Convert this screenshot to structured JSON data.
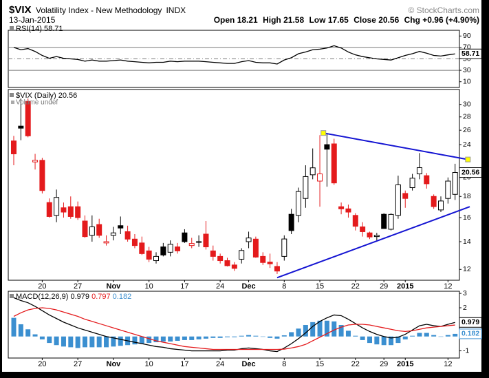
{
  "header": {
    "symbol": "$VIX",
    "name": "Volatility Index - New Methodology",
    "exchange": "INDX",
    "copyright": "© StockCharts.com",
    "date": "13-Jan-2015",
    "quote_labels": [
      "Open",
      "High",
      "Low",
      "Close",
      "Chg"
    ],
    "change": "+0.96 (+4.90%)"
  },
  "chart_data": [
    {
      "type": "line",
      "series": [
        {
          "name": "RSI(14)",
          "color": "#000000",
          "values": [
            70,
            66,
            68,
            63,
            56,
            51,
            54,
            51,
            50,
            49,
            46,
            48,
            46,
            46,
            47,
            48,
            46,
            45,
            44,
            43,
            44,
            44,
            46,
            45,
            46,
            46,
            46,
            45,
            44,
            43,
            42,
            42,
            45,
            47,
            44,
            43,
            43,
            41,
            48,
            52,
            59,
            62,
            66,
            67,
            69,
            73,
            69,
            62,
            57,
            54,
            52,
            50,
            49,
            48,
            52,
            56,
            59,
            63,
            60,
            56,
            55,
            57,
            58.71
          ]
        }
      ],
      "ylim": [
        0,
        100
      ],
      "yticks": [
        10,
        30,
        50,
        70,
        90
      ],
      "hlines": [
        30,
        70
      ],
      "dashed_hlines": [
        50
      ]
    },
    {
      "type": "candlestick",
      "title": "$VIX (Daily)",
      "subtitle": "Volume undef",
      "categories": [
        null,
        null,
        null,
        null,
        "20",
        null,
        null,
        null,
        null,
        "27",
        null,
        null,
        null,
        null,
        "Nov",
        null,
        null,
        null,
        null,
        "10",
        null,
        null,
        null,
        null,
        "17",
        null,
        null,
        null,
        null,
        "24",
        null,
        null,
        null,
        "Dec",
        null,
        null,
        null,
        null,
        "8",
        null,
        null,
        null,
        null,
        "15",
        null,
        null,
        null,
        null,
        "22",
        null,
        null,
        null,
        "29",
        null,
        null,
        "2015",
        null,
        null,
        null,
        null,
        null,
        "12",
        null
      ],
      "open": [
        24.5,
        26.6,
        30.5,
        21.8,
        22.0,
        17.4,
        16.2,
        16.9,
        17.0,
        17.0,
        15.7,
        14.5,
        15.4,
        13.9,
        14.5,
        15.3,
        14.8,
        14.2,
        13.9,
        13.3,
        12.6,
        13.6,
        13.2,
        13.6,
        14.7,
        13.7,
        14.0,
        14.6,
        13.3,
        12.9,
        12.6,
        12.3,
        12.7,
        14.0,
        14.2,
        12.9,
        12.5,
        12.2,
        12.9,
        16.3,
        16.2,
        17.8,
        20.3,
        19.6,
        24.0,
        24.1,
        17.0,
        16.8,
        16.2,
        15.2,
        14.7,
        14.4,
        16.3,
        15.0,
        16.2,
        18.3,
        18.9,
        20.4,
        20.2,
        18.0,
        16.7,
        17.8,
        18.21
      ],
      "high": [
        25.2,
        31.0,
        31.0,
        22.8,
        22.3,
        17.8,
        18.7,
        17.4,
        18.0,
        17.5,
        16.2,
        16.2,
        15.9,
        14.5,
        15.2,
        16.1,
        15.3,
        14.6,
        14.4,
        13.6,
        13.2,
        13.9,
        14.1,
        13.9,
        15.0,
        14.3,
        14.5,
        15.7,
        13.7,
        13.1,
        12.8,
        12.5,
        13.5,
        14.8,
        14.4,
        13.2,
        13.1,
        12.5,
        14.5,
        16.8,
        18.9,
        21.4,
        23.5,
        25.3,
        25.6,
        24.8,
        17.4,
        17.2,
        16.4,
        15.6,
        14.8,
        14.7,
        16.4,
        16.4,
        20.2,
        18.6,
        20.4,
        22.9,
        20.5,
        18.2,
        18.0,
        20.0,
        21.58
      ],
      "low": [
        21.4,
        24.6,
        25.0,
        20.9,
        18.3,
        16.0,
        15.6,
        16.0,
        15.9,
        15.8,
        14.3,
        14.0,
        14.3,
        13.7,
        14.1,
        14.6,
        14.0,
        13.5,
        13.0,
        12.5,
        12.4,
        12.9,
        12.9,
        13.1,
        13.9,
        13.5,
        13.6,
        13.4,
        12.6,
        12.4,
        12.2,
        11.9,
        12.4,
        13.5,
        12.8,
        12.3,
        12.1,
        11.7,
        12.6,
        14.6,
        15.6,
        16.9,
        19.8,
        17.0,
        19.0,
        19.2,
        16.3,
        16.0,
        14.9,
        14.4,
        14.2,
        14.1,
        15.1,
        14.9,
        15.9,
        16.9,
        18.6,
        19.8,
        18.8,
        16.8,
        16.5,
        17.3,
        17.65
      ],
      "close": [
        22.8,
        26.3,
        25.2,
        22.0,
        18.6,
        16.1,
        17.9,
        16.5,
        16.1,
        16.0,
        14.4,
        15.2,
        14.5,
        14.0,
        14.7,
        15.1,
        14.2,
        13.7,
        13.1,
        12.7,
        12.9,
        13.0,
        13.8,
        13.3,
        14.0,
        13.86,
        13.96,
        13.6,
        12.9,
        12.6,
        12.25,
        12.07,
        13.33,
        14.29,
        12.85,
        12.47,
        12.38,
        11.89,
        14.21,
        14.89,
        18.5,
        20.1,
        21.1,
        20.4,
        23.4,
        19.4,
        16.8,
        16.5,
        15.25,
        14.8,
        14.37,
        14.5,
        15.06,
        16.29,
        19.2,
        17.8,
        19.92,
        21.12,
        19.31,
        17.01,
        17.55,
        19.6,
        20.56
      ],
      "up_color": "#000000",
      "down_color": "#e41a1c",
      "log_scale": true,
      "ylim": [
        11.3,
        32.6
      ],
      "yticks": [
        12,
        14,
        16,
        18,
        20,
        24,
        26,
        28,
        30
      ],
      "trendlines": [
        {
          "color": "#1414d2",
          "from": [
            43.5,
            25.6
          ],
          "to": [
            63.8,
            22.1
          ],
          "marker_color": "#ffff00"
        },
        {
          "color": "#1414d2",
          "from": [
            37.0,
            11.46
          ],
          "to": [
            64.06,
            17.0
          ]
        }
      ]
    },
    {
      "type": "macd",
      "categories": [
        null,
        null,
        null,
        null,
        "20",
        null,
        null,
        null,
        null,
        "27",
        null,
        null,
        null,
        null,
        "Nov",
        null,
        null,
        null,
        null,
        "10",
        null,
        null,
        null,
        null,
        "17",
        null,
        null,
        null,
        null,
        "24",
        null,
        null,
        null,
        "Dec",
        null,
        null,
        null,
        null,
        "8",
        null,
        null,
        null,
        null,
        "15",
        null,
        null,
        null,
        null,
        "22",
        null,
        null,
        null,
        "29",
        null,
        null,
        "2015",
        null,
        null,
        null,
        null,
        null,
        "12",
        null
      ],
      "series": [
        {
          "name": "MACD(12,26,9)",
          "color": "#000000",
          "values": [
            2.7,
            2.5,
            2.35,
            2.1,
            1.8,
            1.5,
            1.25,
            1.0,
            0.8,
            0.6,
            0.45,
            0.3,
            0.15,
            0.0,
            -0.1,
            -0.2,
            -0.3,
            -0.4,
            -0.5,
            -0.6,
            -0.7,
            -0.75,
            -0.85,
            -0.9,
            -0.95,
            -1.0,
            -1.0,
            -1.0,
            -1.0,
            -1.0,
            -0.95,
            -0.95,
            -0.85,
            -0.8,
            -0.85,
            -0.9,
            -1.0,
            -1.05,
            -0.8,
            -0.5,
            -0.15,
            0.25,
            0.7,
            1.05,
            1.3,
            1.5,
            1.45,
            1.2,
            0.9,
            0.6,
            0.35,
            0.15,
            0.0,
            -0.1,
            -0.05,
            0.15,
            0.45,
            0.75,
            0.85,
            0.75,
            0.7,
            0.85,
            0.979
          ]
        },
        {
          "color": "#e41a1c",
          "values": [
            1.4,
            1.65,
            1.85,
            1.95,
            2.0,
            1.95,
            1.85,
            1.7,
            1.55,
            1.4,
            1.2,
            1.05,
            0.9,
            0.75,
            0.6,
            0.45,
            0.3,
            0.15,
            0.0,
            -0.15,
            -0.3,
            -0.4,
            -0.5,
            -0.6,
            -0.7,
            -0.75,
            -0.8,
            -0.85,
            -0.9,
            -0.9,
            -0.9,
            -0.9,
            -0.9,
            -0.9,
            -0.9,
            -0.9,
            -0.9,
            -0.9,
            -0.88,
            -0.8,
            -0.7,
            -0.55,
            -0.3,
            -0.05,
            0.2,
            0.45,
            0.65,
            0.8,
            0.85,
            0.85,
            0.8,
            0.7,
            0.6,
            0.5,
            0.4,
            0.35,
            0.4,
            0.5,
            0.6,
            0.65,
            0.7,
            0.75,
            0.797
          ]
        },
        {
          "color": "#3b8fd0",
          "bars": true,
          "values": [
            1.3,
            0.85,
            0.5,
            0.15,
            -0.2,
            -0.45,
            -0.6,
            -0.7,
            -0.75,
            -0.8,
            -0.75,
            -0.75,
            -0.75,
            -0.75,
            -0.7,
            -0.65,
            -0.6,
            -0.55,
            -0.5,
            -0.45,
            -0.4,
            -0.35,
            -0.35,
            -0.3,
            -0.25,
            -0.25,
            -0.2,
            -0.15,
            -0.1,
            -0.1,
            -0.05,
            -0.05,
            0.05,
            0.1,
            0.05,
            0.0,
            -0.1,
            -0.15,
            0.08,
            0.3,
            0.55,
            0.8,
            1.0,
            1.1,
            1.1,
            1.05,
            0.8,
            0.4,
            0.05,
            -0.25,
            -0.45,
            -0.55,
            -0.6,
            -0.6,
            -0.45,
            -0.2,
            0.05,
            0.25,
            0.25,
            0.1,
            0.0,
            0.1,
            0.182
          ]
        }
      ],
      "ylim": [
        -1.5,
        3.15
      ],
      "yticks": [
        -1,
        2,
        3
      ]
    }
  ]
}
